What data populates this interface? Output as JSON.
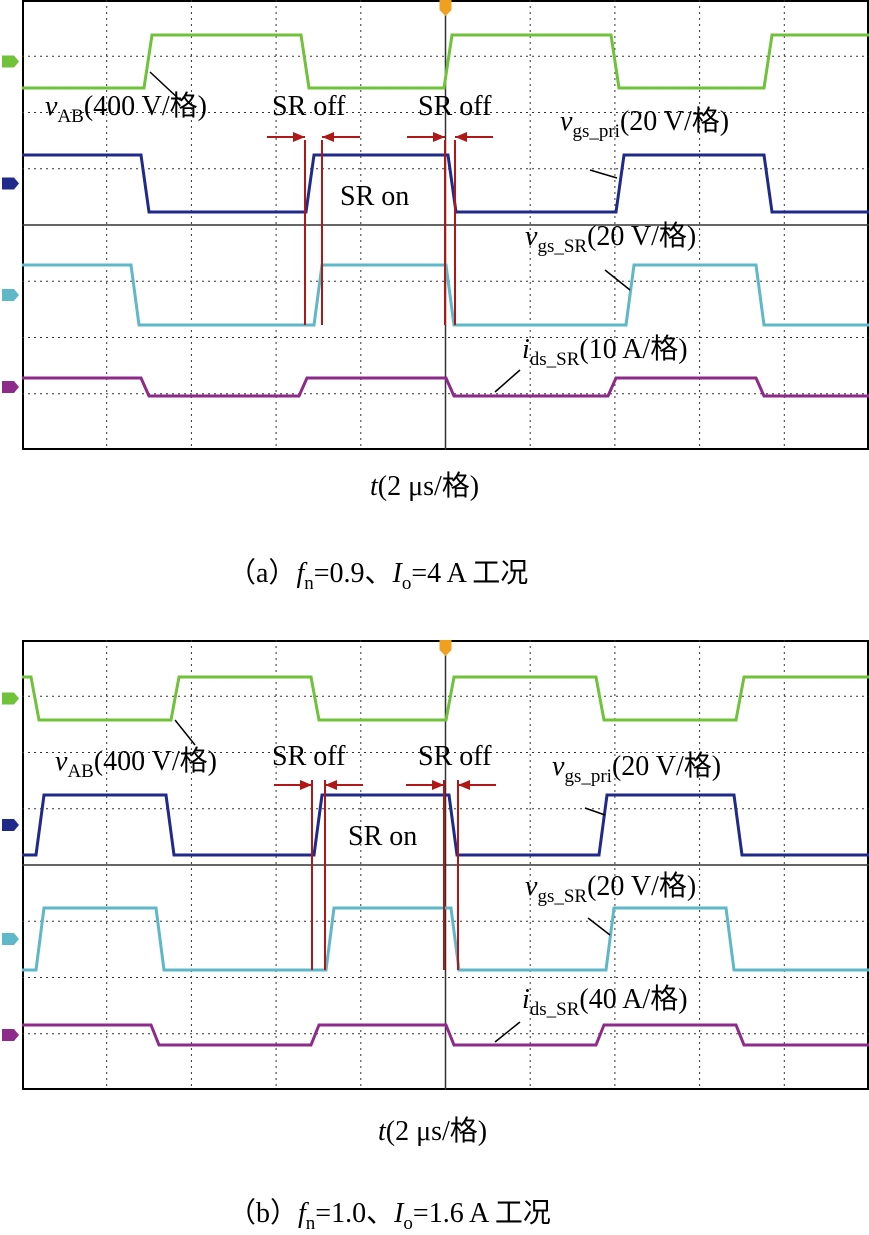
{
  "panels": [
    {
      "labels": {
        "v_ab": {
          "symbol": "v",
          "sub": "AB",
          "scale": "(400 V/格)"
        },
        "v_gs_pri": {
          "symbol": "v",
          "sub": "gs_pri",
          "scale": "(20 V/格)"
        },
        "v_gs_sr": {
          "symbol": "v",
          "sub": "gs_SR",
          "scale": "(20 V/格)"
        },
        "i_ds_sr": {
          "symbol": "i",
          "sub": "ds_SR",
          "scale": "(10 A/格)"
        }
      },
      "sr_off": [
        "SR off",
        "SR off"
      ],
      "sr_on": "SR on",
      "x_axis": {
        "symbol": "t",
        "scale": "(2 μs/格)"
      },
      "caption": {
        "prefix": "（a）",
        "f": "f",
        "f_sub": "n",
        "f_value": "=0.9、",
        "i": "I",
        "i_sub": "o",
        "i_value": "=4 A 工况"
      }
    },
    {
      "labels": {
        "v_ab": {
          "symbol": "v",
          "sub": "AB",
          "scale": "(400 V/格)"
        },
        "v_gs_pri": {
          "symbol": "v",
          "sub": "gs_pri",
          "scale": "(20 V/格)"
        },
        "v_gs_sr": {
          "symbol": "v",
          "sub": "gs_SR",
          "scale": "(20 V/格)"
        },
        "i_ds_sr": {
          "symbol": "i",
          "sub": "ds_SR",
          "scale": "(40 A/格)"
        }
      },
      "sr_off": [
        "SR off",
        "SR off"
      ],
      "sr_on": "SR on",
      "x_axis": {
        "symbol": "t",
        "scale": "(2 μs/格)"
      },
      "caption": {
        "prefix": "（b）",
        "f": "f",
        "f_sub": "n",
        "f_value": "=1.0、",
        "i": "I",
        "i_sub": "o",
        "i_value": "=1.6 A 工况"
      }
    }
  ]
}
